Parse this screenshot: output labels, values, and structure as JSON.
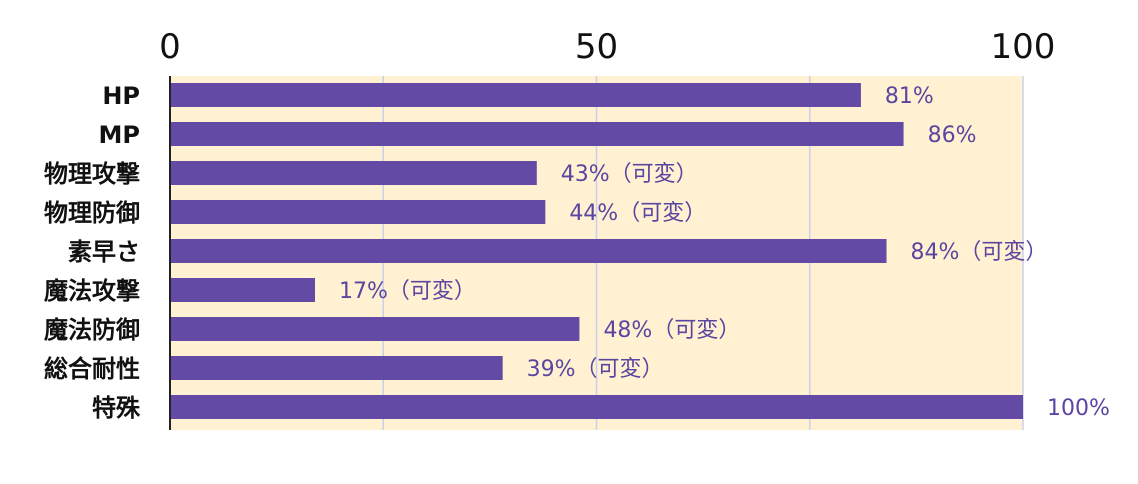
{
  "chart_data": {
    "type": "bar",
    "orientation": "horizontal",
    "categories": [
      "HP",
      "MP",
      "物理攻撃",
      "物理防御",
      "素早さ",
      "魔法攻撃",
      "魔法防御",
      "総合耐性",
      "特殊"
    ],
    "values": [
      81,
      86,
      43,
      44,
      84,
      17,
      48,
      39,
      100
    ],
    "data_labels": [
      "81%",
      "86%",
      "43%（可変）",
      "44%（可変）",
      "84%（可変）",
      "17%（可変）",
      "48%（可変）",
      "39%（可変）",
      "100%"
    ],
    "title": "",
    "xlabel": "",
    "ylabel": "",
    "xlim": [
      0,
      100
    ],
    "ticks": [
      0,
      50,
      100
    ],
    "tick_labels": [
      "0",
      "50",
      "100"
    ],
    "minor_gridlines": [
      25,
      75
    ],
    "axis_position": "top",
    "grid": true,
    "legend": "none",
    "colors": {
      "bar": "#634aa5",
      "plot_background": "#fff1d2",
      "gridline": "#c8d2ea",
      "axis": "#222222",
      "value_label": "#5a46a0",
      "text": "#111111"
    }
  }
}
